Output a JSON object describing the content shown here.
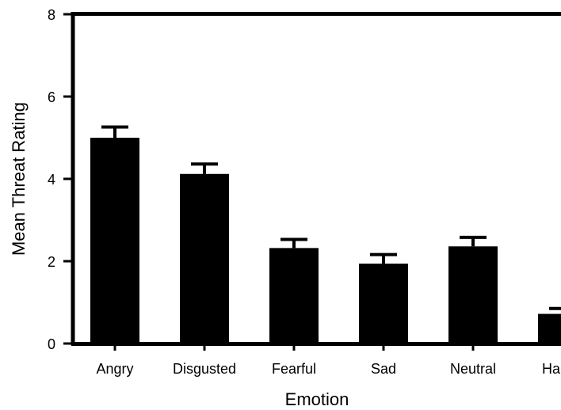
{
  "chart_data": {
    "type": "bar",
    "title": "",
    "xlabel": "Emotion",
    "ylabel": "Mean Threat Rating",
    "categories": [
      "Angry",
      "Disgusted",
      "Fearful",
      "Sad",
      "Neutral",
      "Happy"
    ],
    "values": [
      5.0,
      4.12,
      2.32,
      1.94,
      2.36,
      0.72
    ],
    "error_upper": [
      0.26,
      0.24,
      0.21,
      0.22,
      0.22,
      0.13
    ],
    "ylim": [
      0,
      8
    ],
    "yticks": [
      0,
      2,
      4,
      6,
      8
    ],
    "bar_color": "#000000",
    "grid": false
  }
}
